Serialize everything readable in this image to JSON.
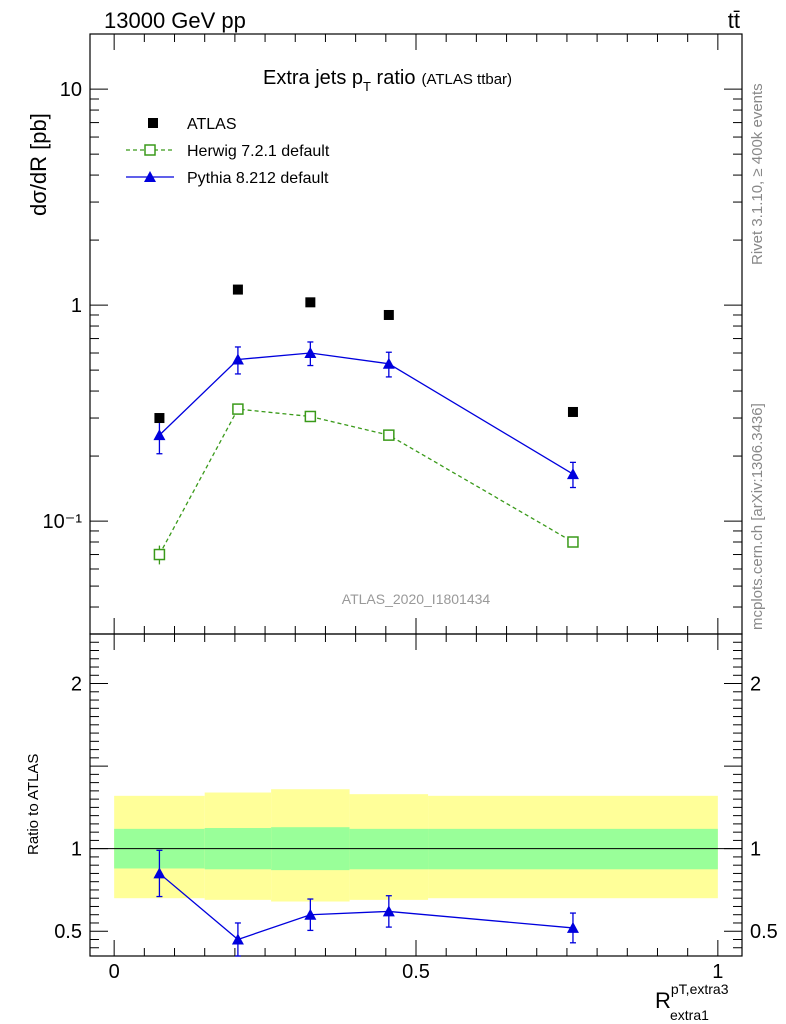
{
  "header": {
    "energy": "13000 GeV pp",
    "process": "tt̄"
  },
  "side_labels": {
    "rivet": "Rivet 3.1.10, ≥ 400k events",
    "mcplots": "mcplots.cern.ch [arXiv:1306.3436]"
  },
  "colors": {
    "atlas": "#000000",
    "herwig": "#3a9a1a",
    "pythia": "#0000dd",
    "band_inner": "#99ff99",
    "band_outer": "#ffff99"
  },
  "chart_data": [
    {
      "type": "scatter",
      "title": "Extra jets p",
      "title_sub": "T",
      "title_rest": " ratio",
      "title_note": "(ATLAS ttbar)",
      "watermark": "ATLAS_2020_I1801434",
      "ylabel": "dσ/dR [pb]",
      "yscale": "log",
      "ylim": [
        0.03,
        18
      ],
      "xlim": [
        -0.04,
        1.04
      ],
      "ytick_labels": [
        "10⁻¹",
        "1",
        "10"
      ],
      "ytick_values": [
        0.1,
        1,
        10
      ],
      "series": [
        {
          "name": "ATLAS",
          "marker": "filled-square",
          "x": [
            0.075,
            0.205,
            0.325,
            0.455,
            0.76
          ],
          "y": [
            0.3,
            1.18,
            1.03,
            0.9,
            0.32
          ]
        },
        {
          "name": "Herwig 7.2.1 default",
          "marker": "open-square",
          "line": "dashed",
          "x": [
            0.075,
            0.205,
            0.325,
            0.455,
            0.76
          ],
          "y": [
            0.07,
            0.33,
            0.305,
            0.25,
            0.08
          ],
          "err": [
            0.007,
            0.018,
            0.015,
            0.012,
            0.004
          ]
        },
        {
          "name": "Pythia 8.212 default",
          "marker": "filled-triangle",
          "line": "solid",
          "x": [
            0.075,
            0.205,
            0.325,
            0.455,
            0.76
          ],
          "y": [
            0.25,
            0.56,
            0.6,
            0.535,
            0.165
          ],
          "err": [
            0.045,
            0.08,
            0.075,
            0.07,
            0.022
          ]
        }
      ]
    },
    {
      "type": "line",
      "ylabel": "Ratio to ATLAS",
      "ylim": [
        0.35,
        2.3
      ],
      "xlim": [
        -0.04,
        1.04
      ],
      "xlabel_main": "R",
      "xlabel_sup": "pT,extra3",
      "xlabel_sub": "extra1",
      "xtick_labels": [
        "0",
        "0.5",
        "1"
      ],
      "xtick_values": [
        0,
        0.5,
        1
      ],
      "ytick_labels": [
        "0.5",
        "1",
        "2"
      ],
      "ytick_values": [
        0.5,
        1,
        2
      ],
      "bands": {
        "edges": [
          0,
          0.15,
          0.26,
          0.39,
          0.52,
          1.0
        ],
        "inner_lo": [
          0.88,
          0.875,
          0.87,
          0.875,
          0.875
        ],
        "inner_hi": [
          1.12,
          1.125,
          1.13,
          1.12,
          1.12
        ],
        "outer_lo": [
          0.7,
          0.69,
          0.68,
          0.69,
          0.7
        ],
        "outer_hi": [
          1.32,
          1.34,
          1.36,
          1.33,
          1.32
        ]
      },
      "series": [
        {
          "name": "Pythia 8.212 default",
          "x": [
            0.075,
            0.205,
            0.325,
            0.455,
            0.76
          ],
          "y": [
            0.85,
            0.45,
            0.6,
            0.62,
            0.52
          ],
          "err": [
            0.14,
            0.1,
            0.095,
            0.095,
            0.09
          ]
        }
      ]
    }
  ]
}
